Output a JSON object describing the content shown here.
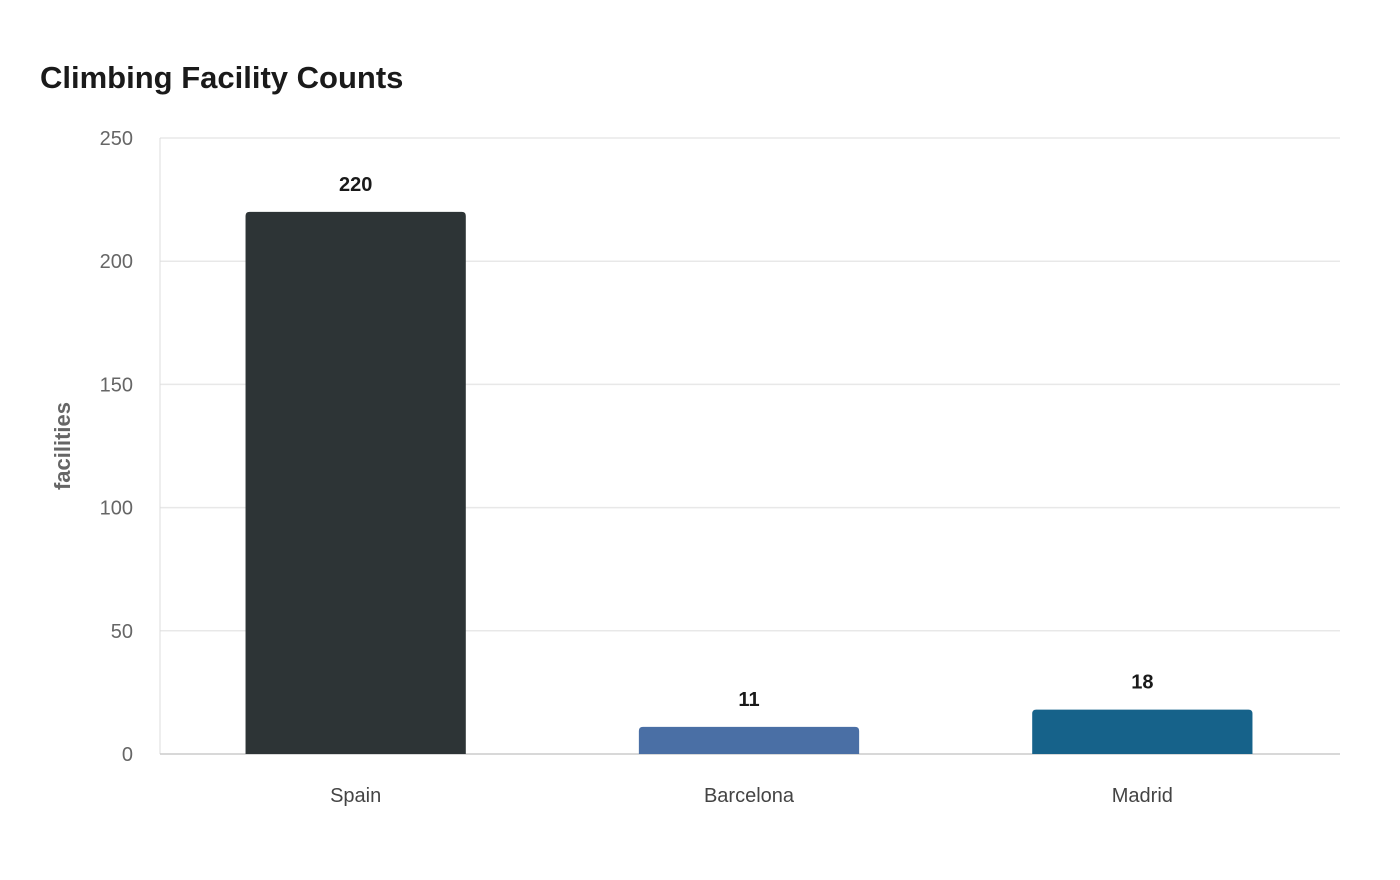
{
  "chart_data": {
    "type": "bar",
    "title": "Climbing Facility Counts",
    "xlabel": "",
    "ylabel": "facilities",
    "categories": [
      "Spain",
      "Barcelona",
      "Madrid"
    ],
    "values": [
      220,
      11,
      18
    ],
    "data_labels": [
      "220",
      "11",
      "18"
    ],
    "bar_colors": [
      "#2d3436",
      "#4a6fa5",
      "#16628a"
    ],
    "ylim": [
      0,
      250
    ],
    "yticks": [
      0,
      50,
      100,
      150,
      200,
      250
    ],
    "grid": true,
    "legend": "none"
  }
}
